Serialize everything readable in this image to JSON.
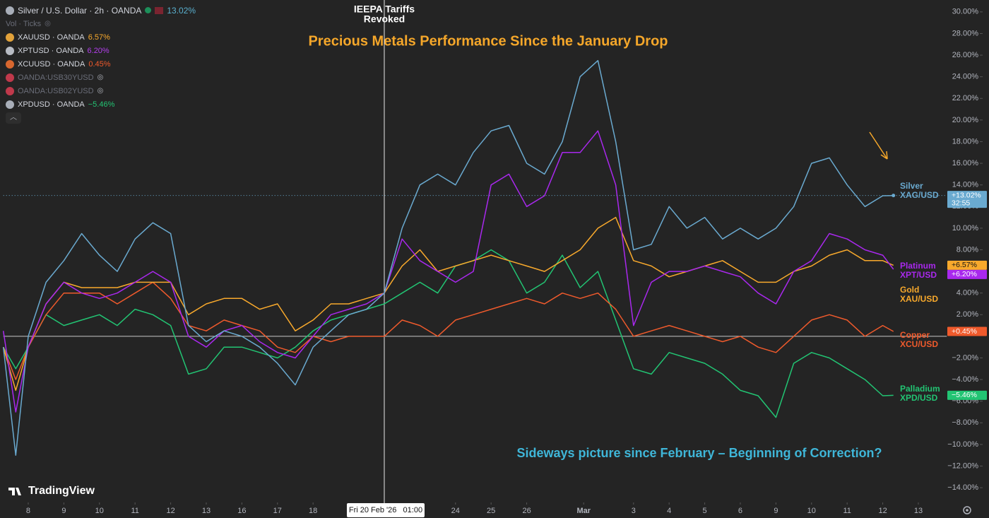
{
  "header": {
    "main": {
      "symbol": "Silver / U.S. Dollar · 2h · OANDA",
      "change": "13.02%"
    },
    "volume": "Vol · Ticks",
    "items": [
      {
        "symbol": "XAUUSD · OANDA",
        "change": "6.57%"
      },
      {
        "symbol": "XPTUSD · OANDA",
        "change": "6.20%"
      },
      {
        "symbol": "XCUUSD · OANDA",
        "change": "0.45%"
      },
      {
        "symbol": "OANDA:USB30YUSD"
      },
      {
        "symbol": "OANDA:USB02YUSD"
      },
      {
        "symbol": "XPDUSD · OANDA",
        "change": "−5.46%"
      }
    ]
  },
  "brand": "TradingView",
  "chart_data": {
    "type": "line",
    "title": "Precious Metals Performance Since the January Drop",
    "subtitle": "Sideways picture since February – Beginning of Correction?",
    "annotation": {
      "lines": [
        "IEEPA Tariffs",
        "Revoked"
      ]
    },
    "crosshair": {
      "x": 10,
      "label": "Fri 20 Feb '26   01:00"
    },
    "countdown": "32:55",
    "x": [
      -0.7,
      -0.35,
      0,
      0.5,
      1,
      1.5,
      2,
      2.5,
      3,
      3.5,
      4,
      4.5,
      5,
      5.5,
      6,
      6.5,
      7,
      7.5,
      8,
      8.5,
      9,
      9.5,
      10,
      10.5,
      11,
      11.5,
      12,
      12.5,
      13,
      13.5,
      14,
      14.5,
      15,
      15.5,
      16,
      16.5,
      17,
      17.5,
      18,
      18.5,
      19,
      19.5,
      20,
      20.5,
      21,
      21.5,
      22,
      22.5,
      23,
      23.5,
      24,
      24.3
    ],
    "series": [
      {
        "name": "Silver",
        "symbol": "XAG/USD",
        "color": "#6aaad0",
        "values": [
          -1,
          -11,
          0,
          5,
          7,
          9.5,
          7.5,
          6,
          9,
          10.5,
          9.5,
          1,
          -0.5,
          0.5,
          0,
          -1,
          -2.5,
          -4.5,
          -1,
          0.5,
          2,
          2.5,
          4,
          10,
          14,
          15,
          14,
          17,
          19,
          19.5,
          16,
          15,
          18,
          24,
          25.5,
          18,
          8,
          8.5,
          12,
          10,
          11,
          9,
          10,
          9,
          10,
          12,
          16,
          16.5,
          14,
          12,
          13,
          13.02
        ],
        "value_labels": [
          null,
          null,
          null,
          null,
          null,
          null,
          null,
          null,
          null,
          null,
          null,
          null,
          null,
          null,
          null,
          null,
          null,
          null,
          null,
          null,
          null,
          null,
          null,
          null,
          null,
          null,
          null,
          null,
          null,
          null,
          null,
          null,
          null,
          null,
          null,
          null,
          null,
          null,
          null,
          null,
          null,
          null,
          null,
          null,
          null,
          null,
          null,
          null,
          null,
          null,
          null,
          "+13.02%"
        ]
      },
      {
        "name": "Platinum",
        "symbol": "XPT/USD",
        "color": "#a928ee",
        "values": [
          0.5,
          -7,
          -1,
          3,
          5,
          4,
          3.5,
          4,
          5,
          6,
          5,
          0,
          -1,
          0.5,
          1,
          -0.5,
          -1.5,
          -2,
          0,
          2,
          2.5,
          3,
          4,
          9,
          7,
          6,
          5,
          6,
          14,
          15,
          12,
          13,
          17,
          17,
          19,
          14,
          1,
          5,
          6,
          6,
          6.5,
          6,
          5.5,
          4,
          3,
          6,
          7,
          9.5,
          9,
          8,
          7.5,
          6.2
        ],
        "value_labels": [
          null,
          null,
          null,
          null,
          null,
          null,
          null,
          null,
          null,
          null,
          null,
          null,
          null,
          null,
          null,
          null,
          null,
          null,
          null,
          null,
          null,
          null,
          null,
          null,
          null,
          null,
          null,
          null,
          null,
          null,
          null,
          null,
          null,
          null,
          null,
          null,
          null,
          null,
          null,
          null,
          null,
          null,
          null,
          null,
          null,
          null,
          null,
          null,
          null,
          null,
          null,
          "+6.20%"
        ]
      },
      {
        "name": "Gold",
        "symbol": "XAU/USD",
        "color": "#f8a92c",
        "values": [
          -1,
          -5,
          -1,
          3,
          5,
          4.5,
          4.5,
          4.5,
          5,
          5,
          5,
          2,
          3,
          3.5,
          3.5,
          2.5,
          3,
          0.5,
          1.5,
          3,
          3,
          3.5,
          4,
          6.5,
          8,
          6,
          6.5,
          7,
          7.5,
          7,
          6.5,
          6,
          7,
          8,
          10,
          11,
          7,
          6.5,
          5.5,
          6,
          6.5,
          7,
          6,
          5,
          5,
          6,
          6.5,
          7.5,
          8,
          7,
          7,
          6.57
        ],
        "value_labels": [
          null,
          null,
          null,
          null,
          null,
          null,
          null,
          null,
          null,
          null,
          null,
          null,
          null,
          null,
          null,
          null,
          null,
          null,
          null,
          null,
          null,
          null,
          null,
          null,
          null,
          null,
          null,
          null,
          null,
          null,
          null,
          null,
          null,
          null,
          null,
          null,
          null,
          null,
          null,
          null,
          null,
          null,
          null,
          null,
          null,
          null,
          null,
          null,
          null,
          null,
          null,
          "+6.57%"
        ]
      },
      {
        "name": "Copper",
        "symbol": "XCU/USD",
        "color": "#ef5a2c",
        "values": [
          -1,
          -4,
          -1,
          2,
          4,
          4,
          4,
          3,
          4,
          5,
          3.5,
          1,
          0.5,
          1.5,
          1,
          0.5,
          -1,
          -1.5,
          0,
          -0.5,
          0,
          0,
          0,
          1.5,
          1,
          0,
          1.5,
          2,
          2.5,
          3,
          3.5,
          3,
          4,
          3.5,
          4,
          2.5,
          0,
          0.5,
          1,
          0.5,
          0,
          -0.5,
          0,
          -1,
          -1.5,
          0,
          1.5,
          2,
          1.5,
          0,
          1,
          0.45
        ],
        "value_labels": [
          null,
          null,
          null,
          null,
          null,
          null,
          null,
          null,
          null,
          null,
          null,
          null,
          null,
          null,
          null,
          null,
          null,
          null,
          null,
          null,
          null,
          null,
          null,
          null,
          null,
          null,
          null,
          null,
          null,
          null,
          null,
          null,
          null,
          null,
          null,
          null,
          null,
          null,
          null,
          null,
          null,
          null,
          null,
          null,
          null,
          null,
          null,
          null,
          null,
          null,
          null,
          "+0.45%"
        ]
      },
      {
        "name": "Palladium",
        "symbol": "XPD/USD",
        "color": "#22c473",
        "values": [
          -1,
          -3,
          -1,
          2,
          1,
          1.5,
          2,
          1,
          2.5,
          2,
          1,
          -3.5,
          -3,
          -1,
          -1,
          -1.5,
          -2,
          -1,
          0.5,
          1.5,
          2,
          2.5,
          3,
          4,
          5,
          4,
          6.5,
          7,
          8,
          7,
          4,
          5,
          7.5,
          4.5,
          6,
          1.5,
          -3,
          -3.5,
          -1.5,
          -2,
          -2.5,
          -3.5,
          -5,
          -5.5,
          -7.5,
          -2.5,
          -1.5,
          -2,
          -3,
          -4,
          -5.5,
          -5.46
        ],
        "value_labels": [
          null,
          null,
          null,
          null,
          null,
          null,
          null,
          null,
          null,
          null,
          null,
          null,
          null,
          null,
          null,
          null,
          null,
          null,
          null,
          null,
          null,
          null,
          null,
          null,
          null,
          null,
          null,
          null,
          null,
          null,
          null,
          null,
          null,
          null,
          null,
          null,
          null,
          null,
          null,
          null,
          null,
          null,
          null,
          null,
          null,
          null,
          null,
          null,
          null,
          null,
          null,
          "−5.46%"
        ]
      }
    ],
    "xlim": [
      -0.7,
      25.8
    ],
    "xticks": [
      {
        "value": 0,
        "label": "8"
      },
      {
        "value": 1,
        "label": "9"
      },
      {
        "value": 2,
        "label": "10"
      },
      {
        "value": 3,
        "label": "11"
      },
      {
        "value": 4,
        "label": "12"
      },
      {
        "value": 5,
        "label": "13"
      },
      {
        "value": 6,
        "label": "16"
      },
      {
        "value": 7,
        "label": "17"
      },
      {
        "value": 8,
        "label": "18"
      },
      {
        "value": 12,
        "label": "24"
      },
      {
        "value": 13,
        "label": "25"
      },
      {
        "value": 14,
        "label": "26"
      },
      {
        "value": 15.6,
        "label": "Mar"
      },
      {
        "value": 17,
        "label": "3"
      },
      {
        "value": 18,
        "label": "4"
      },
      {
        "value": 19,
        "label": "5"
      },
      {
        "value": 20,
        "label": "6"
      },
      {
        "value": 21,
        "label": "9"
      },
      {
        "value": 22,
        "label": "10"
      },
      {
        "value": 23,
        "label": "11"
      },
      {
        "value": 24,
        "label": "12"
      },
      {
        "value": 25,
        "label": "13"
      }
    ],
    "ylim": [
      -15.3,
      31.1
    ],
    "yticks": [
      {
        "value": 30,
        "label": "30.00%"
      },
      {
        "value": 28,
        "label": "28.00%"
      },
      {
        "value": 26,
        "label": "26.00%"
      },
      {
        "value": 24,
        "label": "24.00%"
      },
      {
        "value": 22,
        "label": "22.00%"
      },
      {
        "value": 20,
        "label": "20.00%"
      },
      {
        "value": 18,
        "label": "18.00%"
      },
      {
        "value": 16,
        "label": "16.00%"
      },
      {
        "value": 14,
        "label": "14.00%"
      },
      {
        "value": 12,
        "label": "12.00%"
      },
      {
        "value": 10,
        "label": "10.00%"
      },
      {
        "value": 8,
        "label": "8.00%"
      },
      {
        "value": 6,
        "label": "6.00%"
      },
      {
        "value": 4,
        "label": "4.00%"
      },
      {
        "value": 2,
        "label": "2.00%"
      },
      {
        "value": -2,
        "label": "−2.00%"
      },
      {
        "value": -4,
        "label": "−4.00%"
      },
      {
        "value": -6,
        "label": "−6.00%"
      },
      {
        "value": -8,
        "label": "−8.00%"
      },
      {
        "value": -10,
        "label": "−10.00%"
      },
      {
        "value": -12,
        "label": "−12.00%"
      },
      {
        "value": -14,
        "label": "−14.00%"
      }
    ],
    "grid": false
  }
}
